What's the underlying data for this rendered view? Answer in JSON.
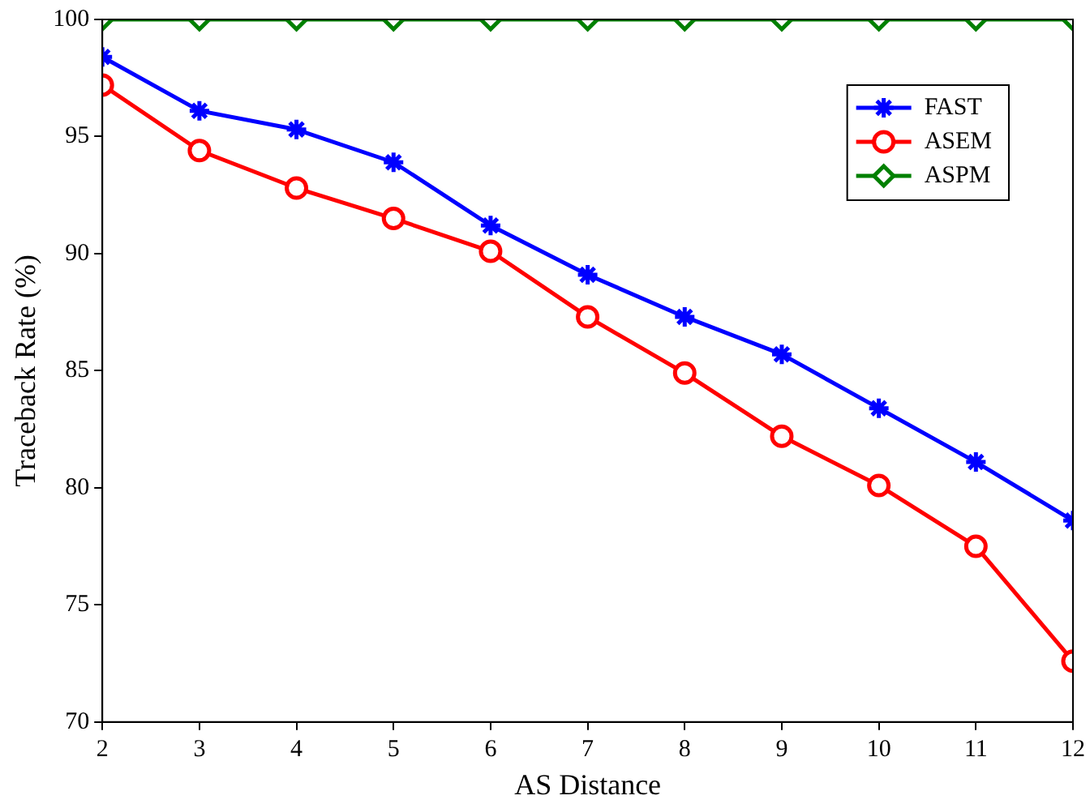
{
  "chart_data": {
    "type": "line",
    "xlabel": "AS Distance",
    "ylabel": "Traceback Rate (%)",
    "x": [
      2,
      3,
      4,
      5,
      6,
      7,
      8,
      9,
      10,
      11,
      12
    ],
    "xlim": [
      2,
      12
    ],
    "xticks": [
      2,
      3,
      4,
      5,
      6,
      7,
      8,
      9,
      10,
      11,
      12
    ],
    "ylim": [
      70,
      100
    ],
    "yticks": [
      70,
      75,
      80,
      85,
      90,
      95,
      100
    ],
    "grid": false,
    "legend": "top right",
    "line_style": "solid",
    "series": [
      {
        "name": "FAST",
        "color": "#0000ff",
        "marker": "cross",
        "values": [
          98.4,
          96.1,
          95.3,
          93.9,
          91.2,
          89.1,
          87.3,
          85.7,
          83.4,
          81.1,
          78.6
        ]
      },
      {
        "name": "ASEM",
        "color": "#ff0000",
        "marker": "circle",
        "values": [
          97.2,
          94.4,
          92.8,
          91.5,
          90.1,
          87.3,
          84.9,
          82.2,
          80.1,
          77.5,
          72.6
        ]
      },
      {
        "name": "ASPM",
        "color": "#008000",
        "marker": "diamond",
        "values": [
          100,
          100,
          100,
          100,
          100,
          100,
          100,
          100,
          100,
          100,
          100
        ]
      }
    ]
  }
}
